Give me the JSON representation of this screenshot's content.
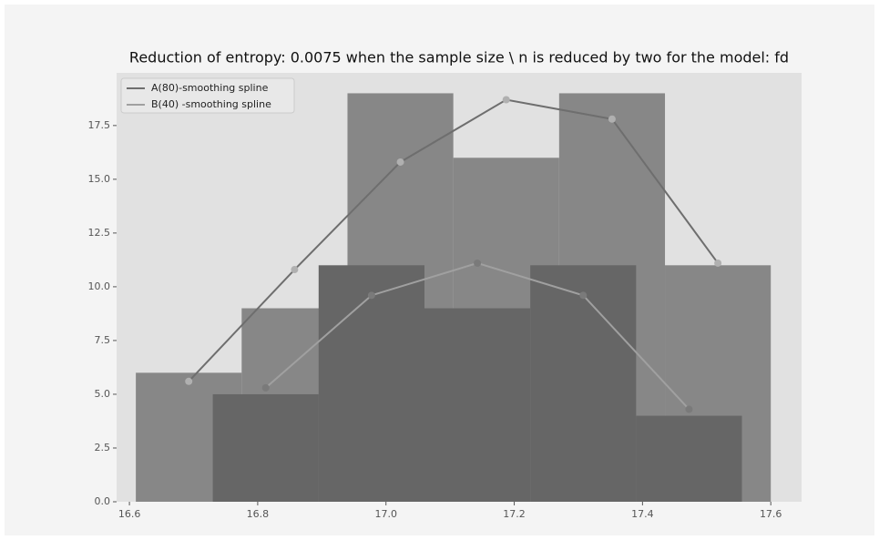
{
  "chart_data": {
    "type": "histogram",
    "title": "Reduction of entropy: 0.0075 when the sample size \\ n is reduced by two for the model: fd",
    "histograms": [
      {
        "bins": [
          16.61,
          16.775,
          16.94,
          17.105,
          17.27,
          17.435,
          17.6
        ],
        "counts": [
          6,
          9,
          19,
          16,
          19,
          11
        ],
        "color": "#878787"
      },
      {
        "bins": [
          16.73,
          16.895,
          17.06,
          17.225,
          17.39,
          17.555
        ],
        "counts": [
          5,
          11,
          9,
          11,
          4
        ],
        "color": "#666666"
      }
    ],
    "series": [
      {
        "name": "A(80)-smoothing spline",
        "color": "#6e6e6e",
        "marker_color": "#b0b0b0",
        "x": [
          16.6925,
          16.8575,
          17.0225,
          17.1875,
          17.3525,
          17.5175
        ],
        "values": [
          5.6,
          10.8,
          15.8,
          18.7,
          17.8,
          11.1
        ]
      },
      {
        "name": "B(40) -smoothing spline",
        "color": "#a0a0a0",
        "marker_color": "#7a7a7a",
        "x": [
          16.8125,
          16.9775,
          17.1425,
          17.3075,
          17.4725
        ],
        "values": [
          5.3,
          9.6,
          11.1,
          9.6,
          4.3
        ]
      }
    ],
    "xlim": [
      16.58,
      17.648
    ],
    "ylim": [
      0,
      19.95
    ],
    "xticks": [
      16.6,
      16.8,
      {
        "value": 17.0,
        "label": "17.0"
      },
      17.2,
      17.4,
      17.6
    ],
    "yticks": [
      {
        "value": 0,
        "label": "0.0"
      },
      2.5,
      {
        "value": 5,
        "label": "5.0"
      },
      7.5,
      {
        "value": 10,
        "label": "10.0"
      },
      12.5,
      {
        "value": 15,
        "label": "15.0"
      },
      17.5
    ],
    "grid": false,
    "legend": "upper left"
  }
}
